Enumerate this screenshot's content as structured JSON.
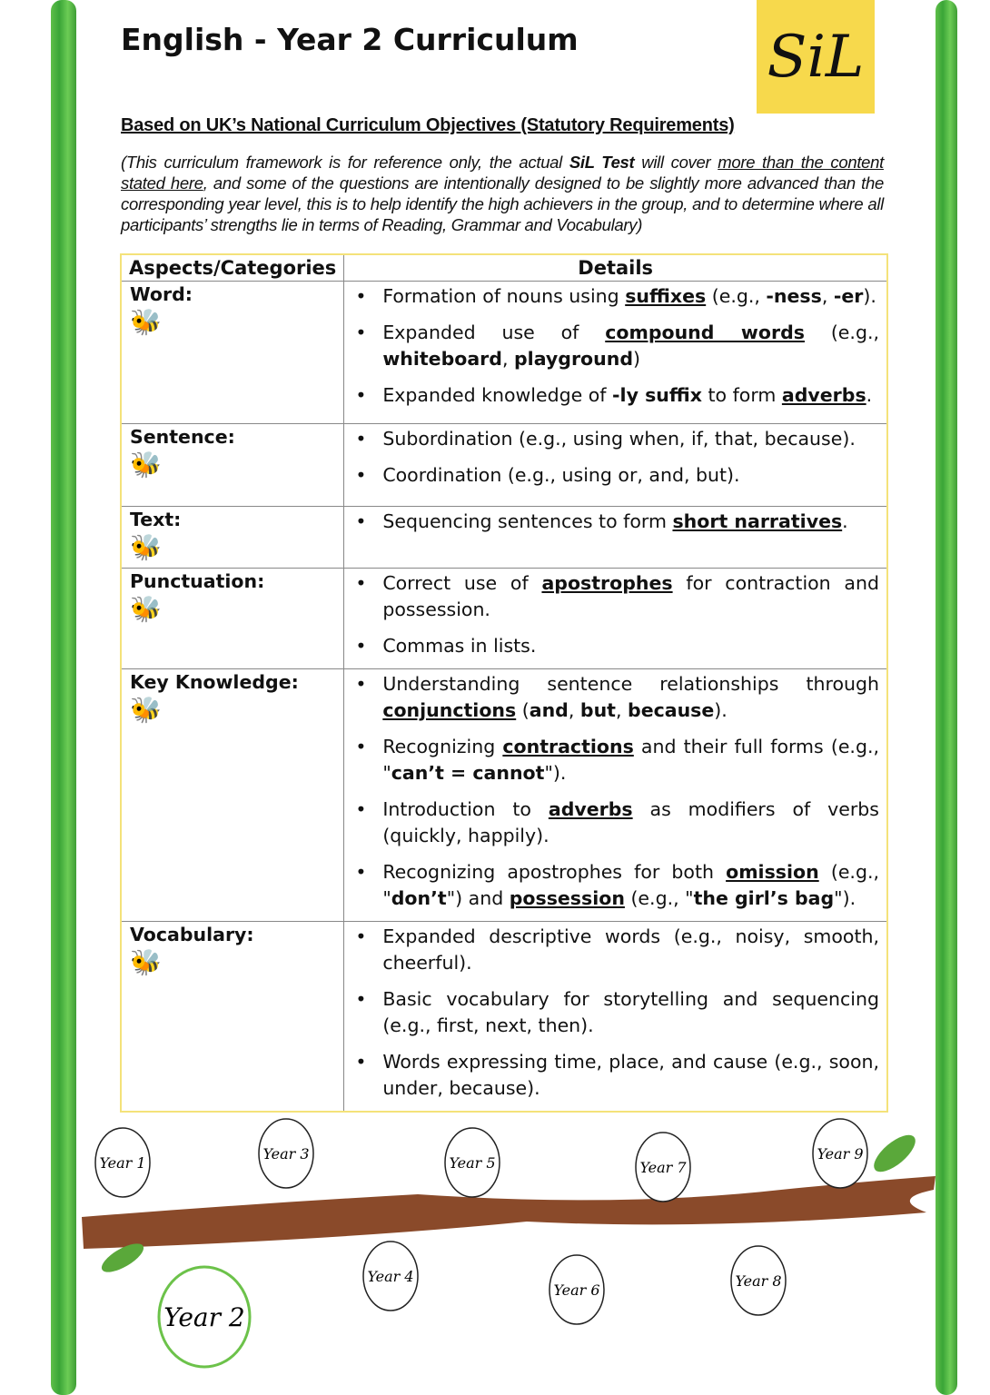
{
  "title": "English - Year 2 Curriculum",
  "logo": "SiL",
  "subtitle": "Based on UK’s National Curriculum Objectives (Statutory Requirements)",
  "intro": {
    "p1": "(This curriculum framework is for reference only, the actual ",
    "bold": "SiL Test",
    "p2": " will cover ",
    "underline": "more than the content stated here",
    "p3": ", and some of the questions are intentionally designed to be slightly more advanced than the corresponding year level, this is to help identify the high achievers in the group, and to determine where all participants’ strengths lie in terms of Reading, Grammar and Vocabulary)"
  },
  "table": {
    "headers": [
      "Aspects/Categories",
      "Details"
    ],
    "rows": [
      {
        "category": "Word:",
        "icon": "bee-icon",
        "items": [
          [
            {
              "t": "Formation of nouns using "
            },
            {
              "t": "suffixes",
              "s": "bu"
            },
            {
              "t": " (e.g., "
            },
            {
              "t": "-ness",
              "s": "b"
            },
            {
              "t": ", "
            },
            {
              "t": "-er",
              "s": "b"
            },
            {
              "t": ")."
            }
          ],
          [
            {
              "t": "Expanded use of "
            },
            {
              "t": "compound words",
              "s": "bu"
            },
            {
              "t": " (e.g., "
            },
            {
              "t": "whiteboard",
              "s": "b"
            },
            {
              "t": ", "
            },
            {
              "t": "playground",
              "s": "b"
            },
            {
              "t": ")"
            }
          ],
          [
            {
              "t": "Expanded knowledge of "
            },
            {
              "t": "-ly suffix",
              "s": "b"
            },
            {
              "t": " to form "
            },
            {
              "t": "adverbs",
              "s": "bu"
            },
            {
              "t": "."
            }
          ]
        ]
      },
      {
        "category": "Sentence:",
        "icon": "bee-icon",
        "items": [
          [
            {
              "t": "Subordination (e.g., using when, if, that, because)."
            }
          ],
          [
            {
              "t": "Coordination (e.g., using or, and, but)."
            }
          ]
        ]
      },
      {
        "category": "Text:",
        "icon": "bee-icon",
        "items": [
          [
            {
              "t": "Sequencing sentences to form "
            },
            {
              "t": "short narratives",
              "s": "bu"
            },
            {
              "t": "."
            }
          ]
        ]
      },
      {
        "category": "Punctuation:",
        "icon": "bee-icon",
        "items": [
          [
            {
              "t": "Correct use of "
            },
            {
              "t": "apostrophes",
              "s": "bu"
            },
            {
              "t": " for contraction and possession."
            }
          ],
          [
            {
              "t": "Commas in lists."
            }
          ]
        ]
      },
      {
        "category": "Key Knowledge:",
        "icon": "bee-icon",
        "items": [
          [
            {
              "t": "Understanding sentence relationships through "
            },
            {
              "t": "conjunctions",
              "s": "bu"
            },
            {
              "t": " ("
            },
            {
              "t": "and",
              "s": "b"
            },
            {
              "t": ", "
            },
            {
              "t": "but",
              "s": "b"
            },
            {
              "t": ", "
            },
            {
              "t": "because",
              "s": "b"
            },
            {
              "t": ")."
            }
          ],
          [
            {
              "t": "Recognizing "
            },
            {
              "t": "contractions",
              "s": "bu"
            },
            {
              "t": " and their full forms (e.g., \""
            },
            {
              "t": "can’t = cannot",
              "s": "b"
            },
            {
              "t": "\")."
            }
          ],
          [
            {
              "t": "Introduction to "
            },
            {
              "t": "adverbs",
              "s": "bu"
            },
            {
              "t": " as modifiers of verbs (quickly, happily)."
            }
          ],
          [
            {
              "t": "Recognizing apostrophes for both "
            },
            {
              "t": "omission",
              "s": "bu"
            },
            {
              "t": " (e.g., \""
            },
            {
              "t": "don’t",
              "s": "b"
            },
            {
              "t": "\") and "
            },
            {
              "t": "possession",
              "s": "bu"
            },
            {
              "t": " (e.g., \""
            },
            {
              "t": "the girl’s bag",
              "s": "b"
            },
            {
              "t": "\")."
            }
          ]
        ]
      },
      {
        "category": "Vocabulary:",
        "icon": "bee-icon",
        "items": [
          [
            {
              "t": "Expanded descriptive words (e.g., noisy, smooth, cheerful)."
            }
          ],
          [
            {
              "t": "Basic vocabulary for storytelling and sequencing (e.g., first, next, then)."
            }
          ],
          [
            {
              "t": "Words expressing time, place, and cause (e.g., soon, under, because)."
            }
          ]
        ]
      }
    ]
  },
  "timeline": {
    "years": [
      "Year 1",
      "Year 2",
      "Year 3",
      "Year 4",
      "Year 5",
      "Year 6",
      "Year 7",
      "Year 8",
      "Year 9"
    ],
    "current": "Year 2"
  },
  "colors": {
    "vine": "#3aa537",
    "logo_bg": "#f7d94c",
    "table_border": "#f4e27a",
    "branch": "#8a4a2a",
    "current_leaf": "#6cc24a"
  }
}
